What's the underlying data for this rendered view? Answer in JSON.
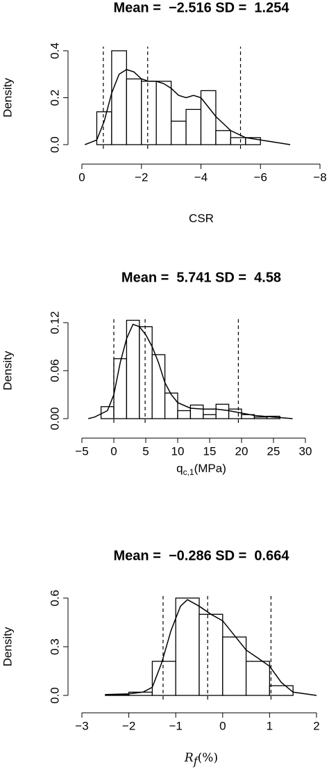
{
  "chart_data": [
    {
      "type": "histogram",
      "title": "Mean =  −2.516 SD =  1.254",
      "x_label": "CSR",
      "y_label": "Density",
      "bins": [
        -0.5,
        -1,
        -1.5,
        -2,
        -2.5,
        -3,
        -3.5,
        -4,
        -4.5,
        -5,
        -5.5,
        -6
      ],
      "values": [
        0.14,
        0.4,
        0.28,
        0.27,
        0.27,
        0.1,
        0.15,
        0.23,
        0.06,
        0.03,
        0.03
      ],
      "density": {
        "x": [
          -0.1,
          -0.5,
          -0.75,
          -1,
          -1.25,
          -1.5,
          -1.75,
          -2,
          -2.25,
          -2.5,
          -2.75,
          -3,
          -3.25,
          -3.5,
          -3.75,
          -4,
          -4.25,
          -4.5,
          -5,
          -5.5,
          -6,
          -6.5,
          -7
        ],
        "y": [
          0.0,
          0.02,
          0.1,
          0.22,
          0.3,
          0.32,
          0.31,
          0.28,
          0.27,
          0.27,
          0.26,
          0.24,
          0.21,
          0.2,
          0.21,
          0.2,
          0.16,
          0.12,
          0.06,
          0.03,
          0.02,
          0.01,
          0.0
        ]
      },
      "vlines": [
        -0.72,
        -2.21,
        -5.33
      ],
      "xlim": [
        0,
        -8
      ],
      "ylim": [
        0,
        0.4
      ],
      "xticks": [
        0,
        {
          "value": -2,
          "label": "−2"
        },
        {
          "value": -4,
          "label": "−4"
        },
        {
          "value": -6,
          "label": "−6"
        },
        {
          "value": -8,
          "label": "−8"
        }
      ],
      "yticks": [
        {
          "value": 0,
          "label": "0.0"
        },
        0.2,
        0.4
      ],
      "color": "#000000"
    },
    {
      "type": "histogram",
      "title": "Mean =  5.741 SD =  4.58",
      "x_label": {
        "base": "q",
        "sub": "c,1",
        "rest": "(MPa)"
      },
      "y_label": "Density",
      "bins": [
        -2,
        0,
        2,
        4,
        6,
        8,
        10,
        12,
        14,
        16,
        18,
        20,
        22,
        24,
        26
      ],
      "values": [
        0.015,
        0.075,
        0.123,
        0.115,
        0.08,
        0.032,
        0.01,
        0.017,
        0.005,
        0.018,
        0.012,
        0.005,
        0.002,
        0.003
      ],
      "density": {
        "x": [
          -4,
          -3,
          -1,
          0,
          1,
          2,
          3,
          4,
          5,
          6,
          7,
          8,
          9,
          10,
          12,
          14,
          16,
          18,
          20,
          22,
          25,
          28
        ],
        "y": [
          0.0,
          0.002,
          0.01,
          0.03,
          0.07,
          0.1,
          0.118,
          0.115,
          0.105,
          0.09,
          0.07,
          0.045,
          0.03,
          0.02,
          0.013,
          0.012,
          0.012,
          0.01,
          0.007,
          0.004,
          0.002,
          0.0
        ]
      },
      "vlines": [
        0.0,
        4.9,
        19.5
      ],
      "xlim": [
        -5,
        30
      ],
      "ylim": [
        0,
        0.12
      ],
      "xticks": [
        {
          "value": -5,
          "label": "−5"
        },
        0,
        5,
        10,
        15,
        20,
        25,
        30
      ],
      "yticks": [
        {
          "value": 0,
          "label": "0.00"
        },
        0.06,
        0.12
      ],
      "color": "#000000"
    },
    {
      "type": "histogram",
      "title": "Mean =  −0.286 SD =  0.664",
      "x_label": {
        "base": "R",
        "sub": "f",
        "rest": "(%)",
        "italic": true
      },
      "y_label": "Density",
      "bins": [
        -2.5,
        -2,
        -1.5,
        -1,
        -0.5,
        0,
        0.5,
        1,
        1.5
      ],
      "values": [
        0.005,
        0.02,
        0.21,
        0.6,
        0.5,
        0.36,
        0.21,
        0.06
      ],
      "density": {
        "x": [
          -2.5,
          -2,
          -1.7,
          -1.5,
          -1.3,
          -1.1,
          -0.9,
          -0.75,
          -0.5,
          -0.25,
          0,
          0.25,
          0.5,
          0.75,
          1,
          1.25,
          1.5,
          2
        ],
        "y": [
          0.005,
          0.01,
          0.02,
          0.05,
          0.2,
          0.4,
          0.55,
          0.59,
          0.55,
          0.5,
          0.46,
          0.37,
          0.28,
          0.23,
          0.18,
          0.08,
          0.02,
          0.0
        ]
      },
      "vlines": [
        -1.27,
        -0.32,
        1.03
      ],
      "xlim": [
        -3,
        2
      ],
      "ylim": [
        0,
        0.6
      ],
      "xticks": [
        {
          "value": -3,
          "label": "−3"
        },
        {
          "value": -2,
          "label": "−2"
        },
        {
          "value": -1,
          "label": "−1"
        },
        0,
        1,
        2
      ],
      "yticks": [
        {
          "value": 0,
          "label": "0.0"
        },
        0.3,
        0.6
      ],
      "color": "#000000"
    }
  ]
}
